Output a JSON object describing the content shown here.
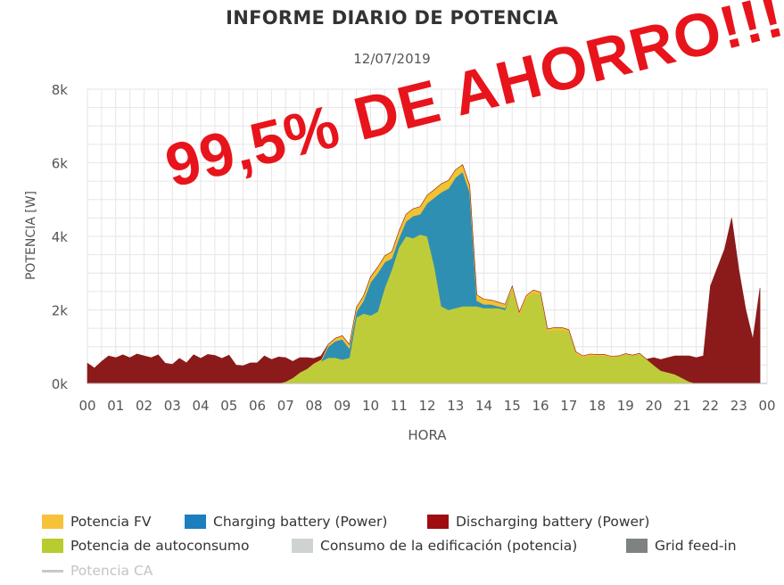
{
  "chart_data": {
    "type": "area",
    "title": "INFORME DIARIO DE POTENCIA",
    "subtitle": "12/07/2019",
    "xlabel": "HORA",
    "ylabel": "POTENCIA [W]",
    "xlim": [
      0,
      24
    ],
    "ylim": [
      0,
      8000
    ],
    "xticks": [
      "00",
      "01",
      "02",
      "03",
      "04",
      "05",
      "06",
      "07",
      "08",
      "09",
      "10",
      "11",
      "12",
      "13",
      "14",
      "15",
      "16",
      "17",
      "18",
      "19",
      "20",
      "21",
      "22",
      "23",
      "00"
    ],
    "yticks": [
      {
        "value": 0,
        "label": "0k"
      },
      {
        "value": 2000,
        "label": "2k"
      },
      {
        "value": 4000,
        "label": "4k"
      },
      {
        "value": 6000,
        "label": "6k"
      },
      {
        "value": 8000,
        "label": "8k"
      }
    ],
    "grid": true,
    "legend_position": "bottom",
    "annotation": "99,5% DE AHORRO!!!",
    "x": [
      0.0,
      0.25,
      0.5,
      0.75,
      1.0,
      1.25,
      1.5,
      1.75,
      2.0,
      2.25,
      2.5,
      2.75,
      3.0,
      3.25,
      3.5,
      3.75,
      4.0,
      4.25,
      4.5,
      4.75,
      5.0,
      5.25,
      5.5,
      5.75,
      6.0,
      6.25,
      6.5,
      6.75,
      7.0,
      7.25,
      7.5,
      7.75,
      8.0,
      8.25,
      8.5,
      8.75,
      9.0,
      9.25,
      9.5,
      9.75,
      10.0,
      10.25,
      10.5,
      10.75,
      11.0,
      11.25,
      11.5,
      11.75,
      12.0,
      12.25,
      12.5,
      12.75,
      13.0,
      13.25,
      13.5,
      13.75,
      14.0,
      14.25,
      14.5,
      14.75,
      15.0,
      15.25,
      15.5,
      15.75,
      16.0,
      16.25,
      16.5,
      16.75,
      17.0,
      17.25,
      17.5,
      17.75,
      18.0,
      18.25,
      18.5,
      18.75,
      19.0,
      19.25,
      19.5,
      19.75,
      20.0,
      20.25,
      20.5,
      20.75,
      21.0,
      21.25,
      21.5,
      21.75,
      22.0,
      22.25,
      22.5,
      22.75,
      23.0,
      23.25,
      23.5,
      23.75
    ],
    "series": [
      {
        "name": "Potencia de autoconsumo",
        "color": "#bfcc3a",
        "values": [
          0,
          0,
          0,
          0,
          0,
          0,
          0,
          0,
          0,
          0,
          0,
          0,
          0,
          0,
          0,
          0,
          0,
          0,
          0,
          0,
          0,
          0,
          0,
          0,
          0,
          0,
          0,
          0,
          50,
          150,
          300,
          400,
          520,
          600,
          700,
          700,
          650,
          700,
          1800,
          1900,
          1850,
          1950,
          2600,
          3100,
          3700,
          4000,
          3950,
          4050,
          4000,
          3200,
          2100,
          2000,
          2050,
          2100,
          2100,
          2100,
          2050,
          2050,
          2050,
          2000,
          2550,
          1850,
          2300,
          2450,
          2400,
          1400,
          1450,
          1450,
          1400,
          800,
          700,
          750,
          750,
          750,
          700,
          720,
          780,
          750,
          800,
          650,
          500,
          350,
          300,
          250,
          150,
          50,
          0,
          0,
          0,
          0,
          0,
          0,
          0,
          0,
          0,
          0
        ]
      },
      {
        "name": "Charging battery (Power)",
        "color": "#2f8fb3",
        "values": [
          0,
          0,
          0,
          0,
          0,
          0,
          0,
          0,
          0,
          0,
          0,
          0,
          0,
          0,
          0,
          0,
          0,
          0,
          0,
          0,
          0,
          0,
          0,
          0,
          0,
          0,
          0,
          0,
          0,
          0,
          0,
          0,
          0,
          0,
          300,
          450,
          550,
          250,
          150,
          350,
          900,
          1050,
          700,
          300,
          250,
          400,
          600,
          550,
          900,
          1850,
          3100,
          3300,
          3550,
          3650,
          3100,
          150,
          100,
          100,
          50,
          50,
          0,
          0,
          0,
          0,
          0,
          0,
          0,
          0,
          0,
          0,
          0,
          0,
          0,
          0,
          0,
          0,
          0,
          0,
          0,
          0,
          0,
          0,
          0,
          0,
          0,
          0,
          0,
          0,
          0,
          0,
          0,
          0,
          0,
          0,
          0,
          0
        ]
      },
      {
        "name": "Potencia FV",
        "color": "#f1c232",
        "values": [
          0,
          0,
          0,
          0,
          0,
          0,
          0,
          0,
          0,
          0,
          0,
          0,
          0,
          0,
          0,
          0,
          0,
          0,
          0,
          0,
          0,
          0,
          0,
          0,
          0,
          0,
          0,
          0,
          0,
          0,
          0,
          0,
          30,
          50,
          60,
          80,
          100,
          110,
          120,
          130,
          150,
          160,
          170,
          180,
          190,
          200,
          200,
          210,
          220,
          220,
          230,
          220,
          210,
          200,
          180,
          160,
          140,
          120,
          110,
          100,
          100,
          90,
          90,
          90,
          80,
          80,
          70,
          70,
          60,
          60,
          50,
          50,
          40,
          40,
          40,
          30,
          30,
          20,
          20,
          10,
          0,
          0,
          0,
          0,
          0,
          0,
          0,
          0,
          0,
          0,
          0,
          0,
          0,
          0,
          0,
          0
        ]
      },
      {
        "name": "Discharging battery (Power)",
        "color": "#8b1a1a",
        "values": [
          550,
          420,
          600,
          750,
          700,
          780,
          700,
          800,
          750,
          700,
          780,
          550,
          520,
          680,
          560,
          780,
          680,
          790,
          760,
          680,
          770,
          500,
          480,
          560,
          560,
          750,
          650,
          720,
          650,
          450,
          400,
          300,
          130,
          100,
          0,
          0,
          0,
          0,
          0,
          0,
          0,
          0,
          0,
          0,
          0,
          0,
          0,
          0,
          0,
          0,
          0,
          0,
          0,
          0,
          0,
          0,
          0,
          0,
          0,
          0,
          0,
          0,
          0,
          0,
          0,
          0,
          0,
          0,
          0,
          0,
          0,
          0,
          0,
          0,
          0,
          0,
          0,
          0,
          0,
          0,
          200,
          300,
          400,
          500,
          600,
          700,
          700,
          750,
          2650,
          3150,
          3650,
          4500,
          3100,
          2000,
          1200,
          2600
        ]
      }
    ]
  },
  "legend": [
    {
      "label": "Potencia FV",
      "color": "#f5c23a",
      "kind": "box"
    },
    {
      "label": "Charging battery (Power)",
      "color": "#1c7dbf",
      "kind": "box"
    },
    {
      "label": "Discharging battery (Power)",
      "color": "#a00d10",
      "kind": "box"
    },
    {
      "label": "Potencia de autoconsumo",
      "color": "#b8cc2d",
      "kind": "box"
    },
    {
      "label": "Consumo de la edificación (potencia)",
      "color": "#cfd2d2",
      "kind": "box"
    },
    {
      "label": "Grid feed-in",
      "color": "#7e8282",
      "kind": "box"
    },
    {
      "label": "Potencia CA",
      "color": "#c8c8c8",
      "kind": "line"
    }
  ]
}
